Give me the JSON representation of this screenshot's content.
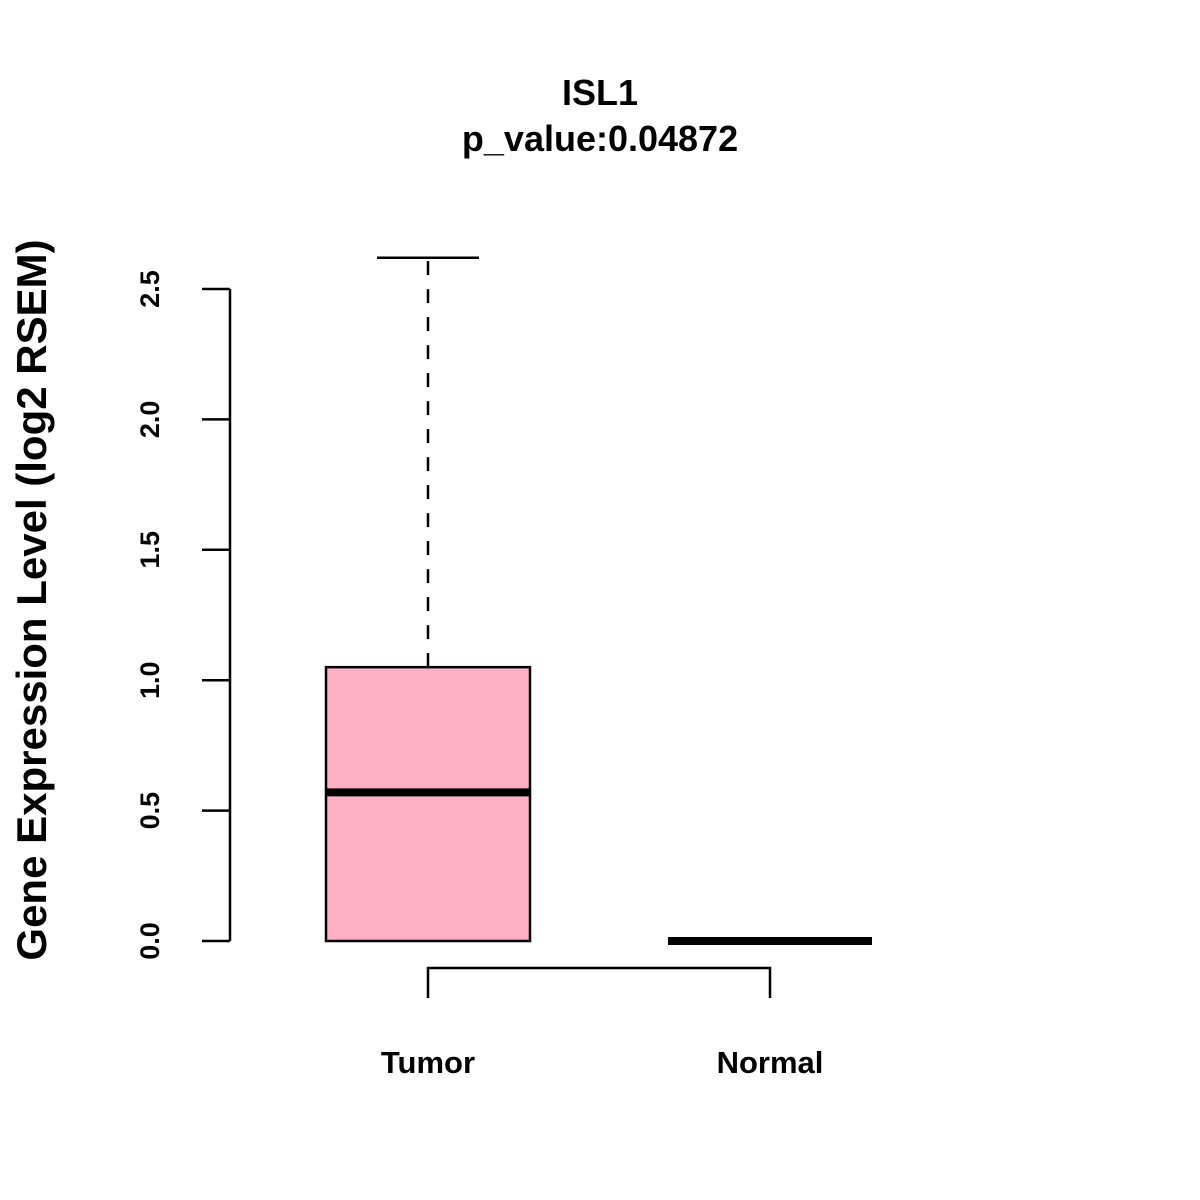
{
  "chart_data": {
    "type": "box",
    "title": "ISL1",
    "subtitle": "p_value:0.04872",
    "xlabel": "",
    "ylabel": "Gene Expression Level (log2 RSEM)",
    "ylim": [
      0,
      2.5
    ],
    "yticks": [
      "0.0",
      "0.5",
      "1.0",
      "1.5",
      "2.0",
      "2.5"
    ],
    "grid": false,
    "categories": [
      "Tumor",
      "Normal"
    ],
    "boxes": [
      {
        "name": "Tumor",
        "min": 0.0,
        "q1": 0.0,
        "median": 0.57,
        "q3": 1.05,
        "max": 2.62,
        "fill": "#FFB0C4"
      },
      {
        "name": "Normal",
        "min": 0.0,
        "q1": 0.0,
        "median": 0.0,
        "q3": 0.0,
        "max": 0.0,
        "fill": "#FFB0C4"
      }
    ],
    "comparison_bracket": [
      "Tumor",
      "Normal"
    ]
  }
}
